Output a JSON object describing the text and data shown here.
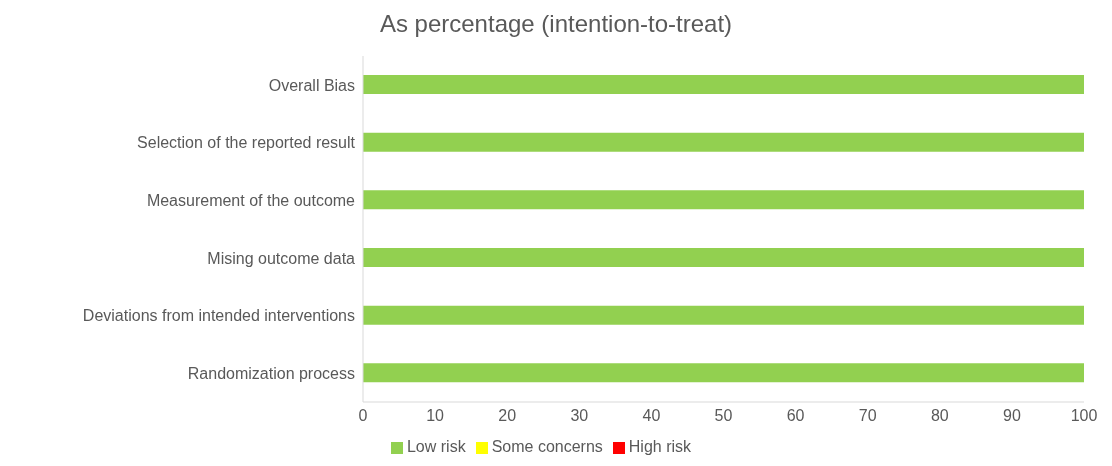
{
  "chart_data": {
    "type": "bar",
    "orientation": "horizontal",
    "stacked": true,
    "title": "As percentage (intention-to-treat)",
    "categories": [
      "Overall Bias",
      "Selection of the reported result",
      "Measurement of the outcome",
      "Mising outcome data",
      "Deviations from intended interventions",
      "Randomization process"
    ],
    "series": [
      {
        "name": "Low risk",
        "color": "#92d050",
        "values": [
          100,
          100,
          100,
          100,
          100,
          100
        ]
      },
      {
        "name": "Some concerns",
        "color": "#ffff00",
        "values": [
          0,
          0,
          0,
          0,
          0,
          0
        ]
      },
      {
        "name": "High risk",
        "color": "#ff0000",
        "values": [
          0,
          0,
          0,
          0,
          0,
          0
        ]
      }
    ],
    "xlim": [
      0,
      100
    ],
    "xticks": [
      0,
      10,
      20,
      30,
      40,
      50,
      60,
      70,
      80,
      90,
      100
    ],
    "grid": false,
    "legend": "bottom"
  }
}
